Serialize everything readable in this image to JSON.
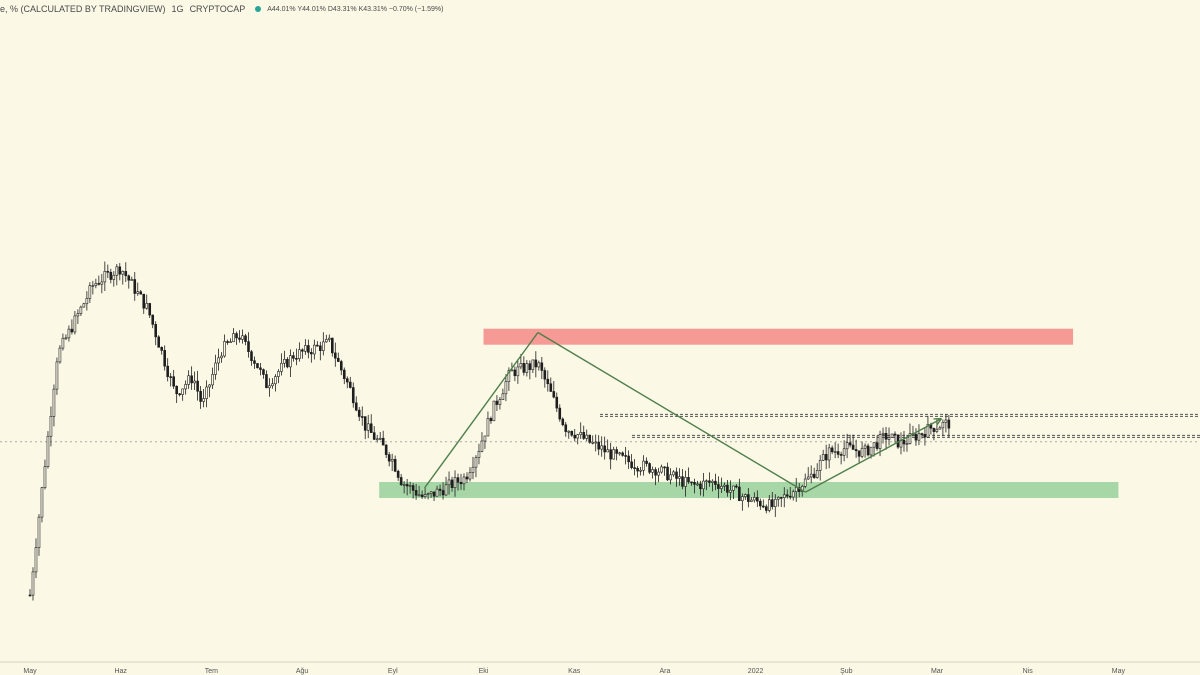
{
  "header": {
    "title": "e, % (CALCULATED BY TRADINGVIEW)",
    "interval": "1G",
    "source": "CRYPTOCAP",
    "ohlc": "A44.01% Y44.01% D43.31% K43.31% −0.70% (−1.59%)"
  },
  "colors": {
    "background": "#fbf8e6",
    "candle": "#1f1f1f",
    "resistance_zone": "#f59a94",
    "support_zone": "#a7d7a6",
    "pattern_line": "#4f7f4a",
    "dotted_line": "#555555"
  },
  "chart_data": {
    "type": "candlestick",
    "title": "e, % (CALCULATED BY TRADINGVIEW)",
    "interval": "1G",
    "source": "CRYPTOCAP",
    "last": {
      "open": 44.01,
      "high": 44.01,
      "low": 43.31,
      "close": 43.31,
      "change": -0.7,
      "change_pct": -1.59
    },
    "x_ticks": [
      "May",
      "Haz",
      "Tem",
      "Ağu",
      "Eyl",
      "Eki",
      "Kas",
      "Ara",
      "2022",
      "Şub",
      "Mar",
      "Nis",
      "May"
    ],
    "price_path": [
      [
        0,
        0
      ],
      [
        0.3,
        57
      ],
      [
        0.7,
        74
      ],
      [
        1.0,
        78
      ],
      [
        1.3,
        68
      ],
      [
        1.45,
        58
      ],
      [
        1.6,
        48
      ],
      [
        1.8,
        52
      ],
      [
        1.9,
        45
      ],
      [
        2.1,
        58
      ],
      [
        2.3,
        62
      ],
      [
        2.5,
        55
      ],
      [
        2.6,
        50
      ],
      [
        2.9,
        57
      ],
      [
        3.3,
        60
      ],
      [
        3.55,
        48
      ],
      [
        3.7,
        40
      ],
      [
        3.9,
        35
      ],
      [
        4.0,
        32
      ],
      [
        4.1,
        27
      ],
      [
        4.35,
        23
      ],
      [
        4.8,
        28
      ],
      [
        4.95,
        35
      ],
      [
        5.1,
        44
      ],
      [
        5.3,
        53
      ],
      [
        5.6,
        55
      ],
      [
        5.9,
        40
      ],
      [
        6.2,
        36
      ],
      [
        6.45,
        33
      ],
      [
        6.7,
        31
      ],
      [
        6.9,
        30
      ],
      [
        7.3,
        26
      ],
      [
        7.55,
        27
      ],
      [
        7.9,
        23
      ],
      [
        8.2,
        21
      ],
      [
        8.35,
        24
      ],
      [
        8.6,
        28
      ],
      [
        8.8,
        34
      ],
      [
        9.0,
        35
      ],
      [
        9.2,
        34
      ],
      [
        9.45,
        38
      ],
      [
        9.6,
        36
      ],
      [
        9.95,
        40
      ],
      [
        10.15,
        41
      ]
    ],
    "zones": [
      {
        "name": "resistance",
        "from": 5.0,
        "to": 11.5,
        "level": 61.5
      },
      {
        "name": "support",
        "from": 3.85,
        "to": 12.0,
        "level": 25
      }
    ],
    "pattern_points": [
      [
        4.35,
        25.5
      ],
      [
        5.6,
        62.5
      ],
      [
        8.55,
        24.5
      ],
      [
        10.05,
        42
      ]
    ],
    "dotted_levels": [
      43,
      36.5,
      38
    ],
    "grid": false
  }
}
